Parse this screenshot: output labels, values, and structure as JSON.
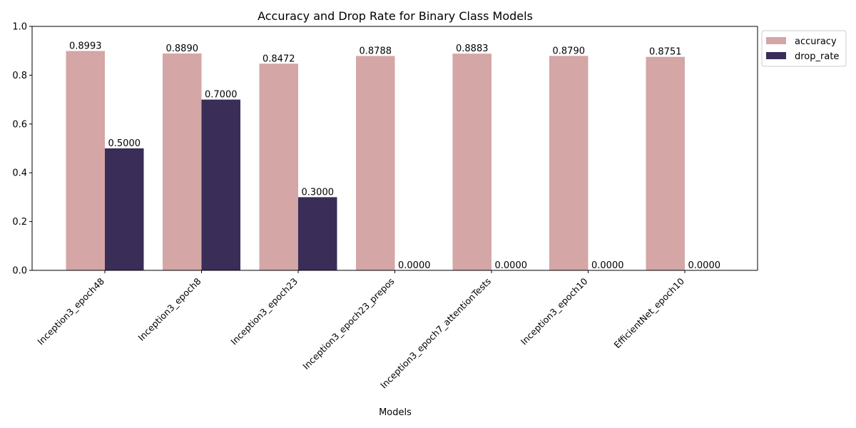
{
  "chart_data": {
    "type": "bar",
    "title": "Accuracy and Drop Rate for Binary Class Models",
    "xlabel": "Models",
    "ylabel": "",
    "ylim": [
      0,
      1
    ],
    "yticks": [
      "0.0",
      "0.2",
      "0.4",
      "0.6",
      "0.8",
      "1.0"
    ],
    "categories": [
      "Inception3_epoch48",
      "Inception3_epoch8",
      "Inception3_epoch23",
      "Inception3_epoch23_prepos",
      "Inception3_epoch7_attentionTests",
      "Inception3_epoch10",
      "EfficientNet_epoch10"
    ],
    "series": [
      {
        "name": "accuracy",
        "color": "#d4a6a6",
        "values": [
          0.8993,
          0.889,
          0.8472,
          0.8788,
          0.8883,
          0.879,
          0.8751
        ],
        "labels": [
          "0.8993",
          "0.8890",
          "0.8472",
          "0.8788",
          "0.8883",
          "0.8790",
          "0.8751"
        ]
      },
      {
        "name": "drop_rate",
        "color": "#3a2e58",
        "values": [
          0.5,
          0.7,
          0.3,
          0.0,
          0.0,
          0.0,
          0.0
        ],
        "labels": [
          "0.5000",
          "0.7000",
          "0.3000",
          "0.0000",
          "0.0000",
          "0.0000",
          "0.0000"
        ]
      }
    ],
    "legend": {
      "position": "outside-top-right"
    },
    "grid": false
  }
}
